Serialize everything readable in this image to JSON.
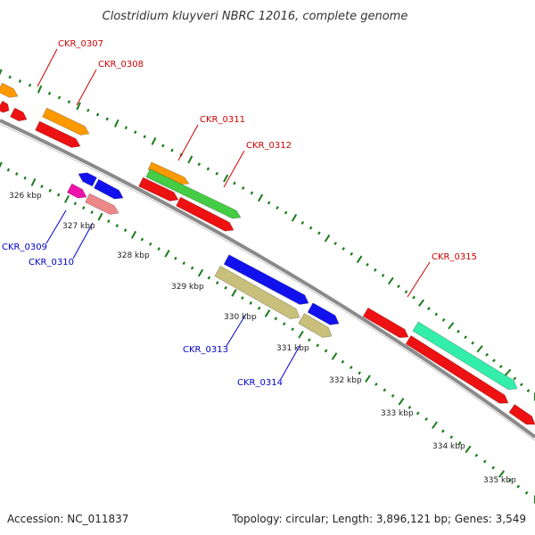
{
  "title": "Clostridium kluyveri NBRC 12016, complete genome",
  "footer": {
    "accession": "Accession: NC_011837",
    "summary": "Topology: circular; Length: 3,896,121 bp; Genes: 3,549"
  },
  "colors": {
    "backbone": "#8a8a8a",
    "ticks": "#1a7a1a",
    "label_top_strand": "#cc0000",
    "label_bottom_strand": "#0000cc",
    "red": "#ee1111",
    "orange": "#ff9900",
    "green": "#44cc44",
    "blue": "#1111ee",
    "magenta": "#ee11aa",
    "pink": "#ee8888",
    "khaki": "#c8bf7a",
    "mint": "#33eeaa"
  },
  "kbp_labels": [
    "326 kbp",
    "327 kbp",
    "328 kbp",
    "329 kbp",
    "330 kbp",
    "331 kbp",
    "332 kbp",
    "333 kbp",
    "334 kbp",
    "335 kbp"
  ],
  "gene_labels": [
    {
      "text": "CKR_0307",
      "strand": "top"
    },
    {
      "text": "CKR_0308",
      "strand": "top"
    },
    {
      "text": "CKR_0311",
      "strand": "top"
    },
    {
      "text": "CKR_0312",
      "strand": "top"
    },
    {
      "text": "CKR_0315",
      "strand": "top"
    },
    {
      "text": "CKR_0309",
      "strand": "bottom"
    },
    {
      "text": "CKR_0310",
      "strand": "bottom"
    },
    {
      "text": "CKR_0313",
      "strand": "bottom"
    },
    {
      "text": "CKR_0314",
      "strand": "bottom"
    }
  ]
}
